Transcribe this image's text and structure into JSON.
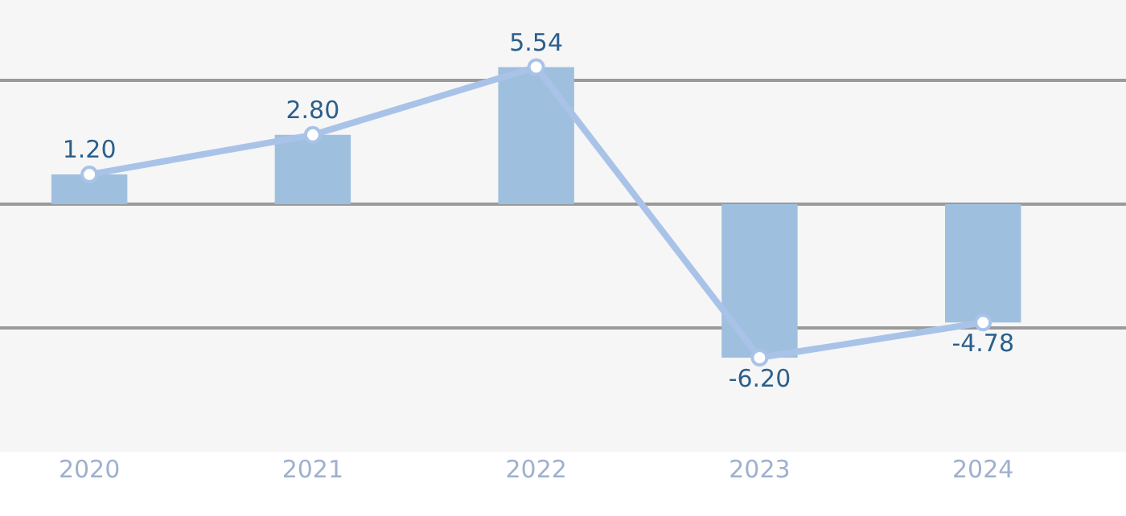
{
  "chart_data": {
    "type": "bar",
    "categories": [
      "2020",
      "2021",
      "2022",
      "2023",
      "2024"
    ],
    "series": [
      {
        "color": "#9fbfdf",
        "values": [
          1.2,
          2.8,
          5.54,
          -6.2,
          -4.78
        ]
      },
      {
        "type": "line",
        "color": "#a9c3e8",
        "values": [
          1.2,
          2.8,
          5.54,
          -6.2,
          -4.78
        ],
        "value_labels": [
          "1.20",
          "2.80",
          "5.54",
          "-6.20",
          "-4.78"
        ]
      }
    ],
    "marker": "circle",
    "line_style": "solid",
    "ylim": [
      -10,
      8.25
    ],
    "yticks": [
      {
        "value": -10,
        "label": null
      },
      {
        "value": -5,
        "label": null
      },
      {
        "value": 0,
        "label": null
      },
      {
        "value": 5,
        "label": null
      }
    ],
    "grid": "y",
    "tick_labels": "x"
  }
}
